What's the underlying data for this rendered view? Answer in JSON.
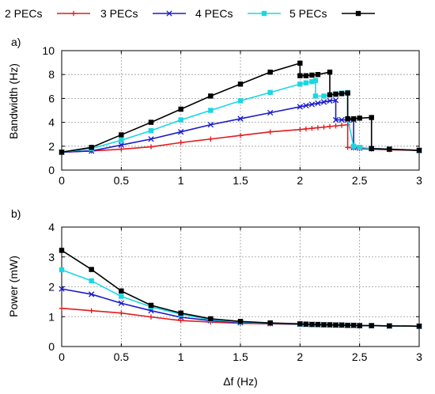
{
  "legend": [
    {
      "label": "2 PECs",
      "color": "#e41a1c",
      "marker": "plus"
    },
    {
      "label": "3 PECs",
      "color": "#1a1acc",
      "marker": "cross"
    },
    {
      "label": "4 PECs",
      "color": "#1ad7e3",
      "marker": "square"
    },
    {
      "label": "5 PECs",
      "color": "#000000",
      "marker": "square"
    }
  ],
  "chart_data": [
    {
      "type": "line",
      "panel_label": "a)",
      "xlabel": "",
      "ylabel": "Bandwidth (Hz)",
      "xlim": [
        0,
        3
      ],
      "ylim": [
        0,
        10
      ],
      "xticks": [
        "0",
        "0.5",
        "1",
        "1.5",
        "2",
        "2.5",
        "3"
      ],
      "yticks": [
        "0",
        "2",
        "4",
        "6",
        "8",
        "10"
      ],
      "grid": true,
      "series": [
        {
          "name": "2 PECs",
          "color": "#e41a1c",
          "marker": "plus",
          "x": [
            0,
            0.25,
            0.5,
            0.75,
            1,
            1.25,
            1.5,
            1.75,
            2,
            2.05,
            2.1,
            2.15,
            2.2,
            2.25,
            2.3,
            2.35,
            2.4,
            2.4,
            2.45,
            2.5,
            2.6,
            2.75,
            3
          ],
          "y": [
            1.5,
            1.6,
            1.75,
            1.95,
            2.3,
            2.6,
            2.9,
            3.2,
            3.4,
            3.45,
            3.5,
            3.55,
            3.6,
            3.65,
            3.7,
            3.75,
            3.8,
            1.9,
            1.85,
            1.8,
            1.75,
            1.7,
            1.65
          ]
        },
        {
          "name": "3 PECs",
          "color": "#1a1acc",
          "marker": "cross",
          "x": [
            0,
            0.25,
            0.5,
            0.75,
            1,
            1.25,
            1.5,
            1.75,
            2,
            2.05,
            2.1,
            2.15,
            2.2,
            2.25,
            2.3,
            2.3,
            2.35,
            2.4,
            2.45,
            2.45,
            2.5,
            2.6,
            2.75,
            3
          ],
          "y": [
            1.5,
            1.6,
            2.1,
            2.6,
            3.2,
            3.8,
            4.3,
            4.8,
            5.3,
            5.4,
            5.5,
            5.6,
            5.7,
            5.8,
            5.85,
            4.2,
            4.2,
            4.2,
            4.2,
            1.9,
            1.85,
            1.8,
            1.75,
            1.65
          ]
        },
        {
          "name": "4 PECs",
          "color": "#1ad7e3",
          "marker": "square",
          "x": [
            0,
            0.25,
            0.5,
            0.75,
            1,
            1.25,
            1.5,
            1.75,
            2,
            2.05,
            2.1,
            2.13,
            2.13,
            2.2,
            2.25,
            2.3,
            2.35,
            2.4,
            2.4,
            2.45,
            2.5,
            2.6,
            2.75,
            3
          ],
          "y": [
            1.5,
            1.8,
            2.5,
            3.3,
            4.2,
            5.0,
            5.8,
            6.5,
            7.2,
            7.3,
            7.4,
            7.5,
            6.2,
            6.2,
            6.3,
            6.4,
            6.45,
            6.5,
            4.3,
            2.0,
            1.9,
            1.8,
            1.75,
            1.65
          ]
        },
        {
          "name": "5 PECs",
          "color": "#000000",
          "marker": "square",
          "x": [
            0,
            0.25,
            0.5,
            0.75,
            1,
            1.25,
            1.5,
            1.75,
            2,
            2,
            2.05,
            2.1,
            2.15,
            2.25,
            2.25,
            2.3,
            2.35,
            2.4,
            2.4,
            2.45,
            2.5,
            2.6,
            2.6,
            2.75,
            3
          ],
          "y": [
            1.5,
            1.9,
            2.95,
            4.0,
            5.1,
            6.2,
            7.2,
            8.2,
            8.95,
            7.9,
            7.9,
            7.95,
            8.0,
            8.2,
            6.3,
            6.35,
            6.4,
            6.45,
            4.3,
            4.3,
            4.35,
            4.4,
            1.8,
            1.75,
            1.65
          ]
        }
      ]
    },
    {
      "type": "line",
      "panel_label": "b)",
      "xlabel": "Δf (Hz)",
      "ylabel": "Power (mW)",
      "xlim": [
        0,
        3
      ],
      "ylim": [
        0,
        4
      ],
      "xticks": [
        "0",
        "0.5",
        "1",
        "1.5",
        "2",
        "2.5",
        "3"
      ],
      "yticks": [
        "0",
        "1",
        "2",
        "3",
        "4"
      ],
      "grid": true,
      "series": [
        {
          "name": "2 PECs",
          "color": "#e41a1c",
          "marker": "plus",
          "x": [
            0,
            0.25,
            0.5,
            0.75,
            1,
            1.25,
            1.5,
            1.75,
            2,
            2.05,
            2.1,
            2.15,
            2.2,
            2.25,
            2.3,
            2.35,
            2.4,
            2.45,
            2.5,
            2.6,
            2.75,
            3
          ],
          "y": [
            1.28,
            1.2,
            1.12,
            0.99,
            0.87,
            0.82,
            0.78,
            0.76,
            0.74,
            0.74,
            0.73,
            0.73,
            0.72,
            0.72,
            0.72,
            0.71,
            0.71,
            0.71,
            0.7,
            0.7,
            0.69,
            0.68
          ]
        },
        {
          "name": "3 PECs",
          "color": "#1a1acc",
          "marker": "cross",
          "x": [
            0,
            0.25,
            0.5,
            0.75,
            1,
            1.25,
            1.5,
            1.75,
            2,
            2.05,
            2.1,
            2.15,
            2.2,
            2.25,
            2.3,
            2.35,
            2.4,
            2.45,
            2.5,
            2.6,
            2.75,
            3
          ],
          "y": [
            1.93,
            1.75,
            1.45,
            1.2,
            0.98,
            0.87,
            0.8,
            0.77,
            0.75,
            0.74,
            0.74,
            0.73,
            0.73,
            0.72,
            0.72,
            0.72,
            0.71,
            0.71,
            0.7,
            0.7,
            0.69,
            0.68
          ]
        },
        {
          "name": "4 PECs",
          "color": "#1ad7e3",
          "marker": "square",
          "x": [
            0,
            0.25,
            0.5,
            0.75,
            1,
            1.25,
            1.5,
            1.75,
            2,
            2.05,
            2.1,
            2.15,
            2.2,
            2.25,
            2.3,
            2.35,
            2.4,
            2.45,
            2.5,
            2.6,
            2.75,
            3
          ],
          "y": [
            2.57,
            2.2,
            1.68,
            1.33,
            1.08,
            0.9,
            0.82,
            0.78,
            0.75,
            0.74,
            0.74,
            0.73,
            0.73,
            0.72,
            0.72,
            0.72,
            0.71,
            0.71,
            0.7,
            0.7,
            0.69,
            0.68
          ]
        },
        {
          "name": "5 PECs",
          "color": "#000000",
          "marker": "square",
          "x": [
            0,
            0.25,
            0.5,
            0.75,
            1,
            1.25,
            1.5,
            1.75,
            2,
            2.05,
            2.1,
            2.15,
            2.2,
            2.25,
            2.3,
            2.35,
            2.4,
            2.45,
            2.5,
            2.6,
            2.75,
            3
          ],
          "y": [
            3.22,
            2.58,
            1.86,
            1.38,
            1.12,
            0.93,
            0.84,
            0.79,
            0.76,
            0.75,
            0.74,
            0.74,
            0.73,
            0.73,
            0.72,
            0.72,
            0.71,
            0.71,
            0.7,
            0.7,
            0.69,
            0.68
          ]
        }
      ]
    }
  ]
}
